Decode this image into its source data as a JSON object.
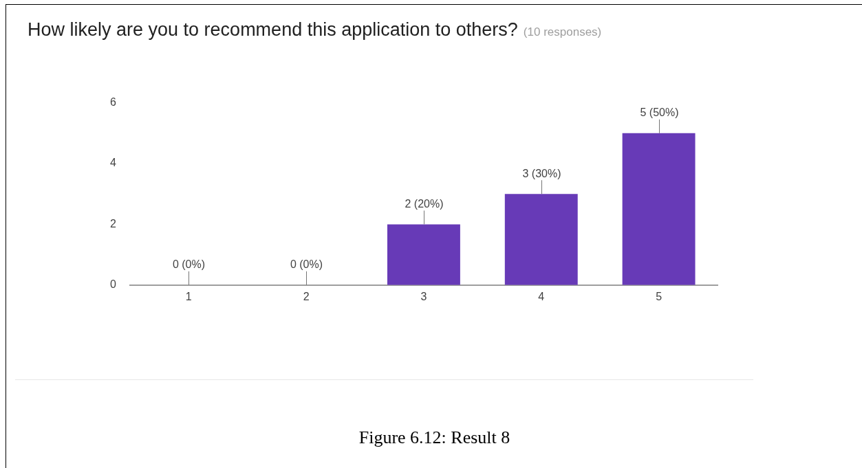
{
  "chart_data": {
    "type": "bar",
    "title": "How likely are you to recommend this application to others?",
    "subtitle": "(10 responses)",
    "categories": [
      "1",
      "2",
      "3",
      "4",
      "5"
    ],
    "values": [
      0,
      0,
      2,
      3,
      5
    ],
    "value_labels": [
      "0 (0%)",
      "0 (0%)",
      "2 (20%)",
      "3 (30%)",
      "5 (50%)"
    ],
    "color": "#673ab7",
    "ylim": [
      0,
      6
    ],
    "yticks": [
      0,
      2,
      4,
      6
    ],
    "grid": false,
    "legend": false,
    "annotations": [
      "Figure 6.12: Result 8"
    ]
  }
}
